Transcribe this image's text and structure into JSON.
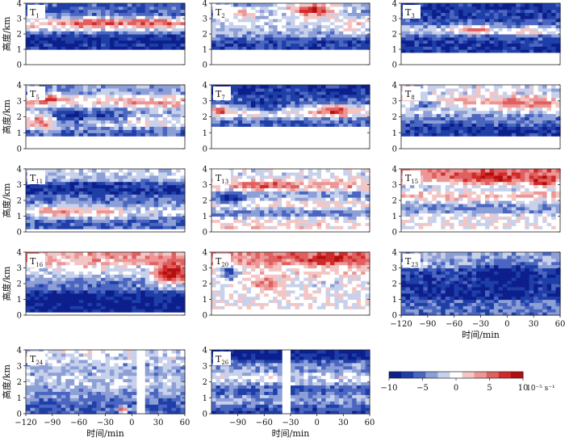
{
  "chart_data": [
    {
      "type": "heatmap",
      "panel": "T1",
      "x": [
        -120,
        60
      ],
      "ylim": [
        0,
        4
      ],
      "floor_km": 1.0,
      "ylabel": "高度/km",
      "yticks": [
        0,
        1,
        2,
        3,
        4
      ],
      "bands": [
        {
          "h": 3.15,
          "v": -6
        },
        {
          "h": 2.75,
          "v": 5
        },
        {
          "h": 2.3,
          "v": -2
        },
        {
          "h": 1.8,
          "v": -9
        },
        {
          "h": 1.3,
          "v": -8
        }
      ],
      "blobs": [
        {
          "x": -40,
          "h": 2.75,
          "v": 7,
          "wx": 30,
          "wh": 0.25
        },
        {
          "x": 20,
          "h": 2.75,
          "v": 6,
          "wx": 30,
          "wh": 0.25
        }
      ]
    },
    {
      "type": "heatmap",
      "panel": "T2",
      "x": [
        -120,
        60
      ],
      "ylim": [
        0,
        4
      ],
      "floor_km": 1.0,
      "yticks": [
        0,
        1,
        2,
        3,
        4
      ],
      "bands": [
        {
          "h": 3.5,
          "v": -3
        },
        {
          "h": 2.7,
          "v": -1
        },
        {
          "h": 2.1,
          "v": -3
        },
        {
          "h": 1.4,
          "v": -7
        }
      ],
      "blobs": [
        {
          "x": -5,
          "h": 3.6,
          "v": 8,
          "wx": 28,
          "wh": 0.45
        },
        {
          "x": -85,
          "h": 3.4,
          "v": 4,
          "wx": 18,
          "wh": 0.3
        },
        {
          "x": 40,
          "h": 2.6,
          "v": 2,
          "wx": 15,
          "wh": 0.5
        }
      ]
    },
    {
      "type": "heatmap",
      "panel": "T3",
      "x": [
        -120,
        60
      ],
      "ylim": [
        0,
        4
      ],
      "floor_km": 0.8,
      "ylabel": "",
      "yticks": [
        0,
        1,
        2,
        3,
        4
      ],
      "bands": [
        {
          "h": 3.4,
          "v": -8
        },
        {
          "h": 2.8,
          "v": -6
        },
        {
          "h": 2.25,
          "v": -1
        },
        {
          "h": 1.7,
          "v": -7
        },
        {
          "h": 1.2,
          "v": -8
        }
      ],
      "blobs": [
        {
          "x": -40,
          "h": 2.3,
          "v": 6,
          "wx": 20,
          "wh": 0.2
        },
        {
          "x": 20,
          "h": 2.2,
          "v": 3,
          "wx": 25,
          "wh": 0.2
        }
      ]
    },
    {
      "type": "heatmap",
      "panel": "T5",
      "x": [
        -120,
        60
      ],
      "ylim": [
        0,
        4
      ],
      "floor_km": 0.9,
      "ylabel": "高度/km",
      "yticks": [
        0,
        1,
        2,
        3,
        4
      ],
      "bands": [
        {
          "h": 3.6,
          "v": -4
        },
        {
          "h": 3.0,
          "v": 3
        },
        {
          "h": 2.3,
          "v": -3
        },
        {
          "h": 1.6,
          "v": 1
        },
        {
          "h": 1.1,
          "v": -6
        }
      ],
      "blobs": [
        {
          "x": -90,
          "h": 3.1,
          "v": 6,
          "wx": 15,
          "wh": 0.3
        },
        {
          "x": -100,
          "h": 1.7,
          "v": 6,
          "wx": 15,
          "wh": 0.4
        },
        {
          "x": -70,
          "h": 2.1,
          "v": -9,
          "wx": 20,
          "wh": 0.6
        },
        {
          "x": -30,
          "h": 2.1,
          "v": -7,
          "wx": 25,
          "wh": 0.5
        }
      ]
    },
    {
      "type": "heatmap",
      "panel": "T7",
      "x": [
        -120,
        60
      ],
      "ylim": [
        0,
        4
      ],
      "floor_km": 1.5,
      "yticks": [
        0,
        1,
        2,
        3,
        4
      ],
      "bands": [
        {
          "h": 3.6,
          "v": -8
        },
        {
          "h": 3.0,
          "v": -5
        },
        {
          "h": 2.3,
          "v": 1
        },
        {
          "h": 1.7,
          "v": -6
        }
      ],
      "blobs": [
        {
          "x": -110,
          "h": 2.4,
          "v": 8,
          "wx": 8,
          "wh": 0.25
        },
        {
          "x": 20,
          "h": 2.4,
          "v": 8,
          "wx": 20,
          "wh": 0.3
        },
        {
          "x": -60,
          "h": 2.8,
          "v": -9,
          "wx": 25,
          "wh": 0.4
        }
      ]
    },
    {
      "type": "heatmap",
      "panel": "T8",
      "x": [
        -120,
        60
      ],
      "ylim": [
        0,
        4
      ],
      "floor_km": 0.9,
      "ylabel": "",
      "yticks": [
        0,
        1,
        2,
        3,
        4
      ],
      "bands": [
        {
          "h": 3.5,
          "v": -1
        },
        {
          "h": 2.9,
          "v": 3
        },
        {
          "h": 2.4,
          "v": -2
        },
        {
          "h": 1.8,
          "v": -5
        },
        {
          "h": 1.2,
          "v": -8
        }
      ],
      "blobs": [
        {
          "x": 20,
          "h": 2.9,
          "v": 5,
          "wx": 30,
          "wh": 0.3
        },
        {
          "x": -90,
          "h": 2.8,
          "v": -5,
          "wx": 20,
          "wh": 0.3
        }
      ]
    },
    {
      "type": "heatmap",
      "panel": "T11",
      "x": [
        -120,
        60
      ],
      "ylim": [
        0,
        4
      ],
      "floor_km": 0.3,
      "ylabel": "高度/km",
      "yticks": [
        0,
        1,
        2,
        3,
        4
      ],
      "bands": [
        {
          "h": 3.6,
          "v": -2
        },
        {
          "h": 2.8,
          "v": -8
        },
        {
          "h": 2.0,
          "v": -5
        },
        {
          "h": 1.3,
          "v": -1
        },
        {
          "h": 0.6,
          "v": -6
        }
      ],
      "blobs": [
        {
          "x": -80,
          "h": 1.3,
          "v": 5,
          "wx": 25,
          "wh": 0.3
        },
        {
          "x": -30,
          "h": 1.2,
          "v": 3,
          "wx": 20,
          "wh": 0.3
        }
      ]
    },
    {
      "type": "heatmap",
      "panel": "T13",
      "x": [
        -120,
        60
      ],
      "ylim": [
        0,
        4
      ],
      "floor_km": 0.2,
      "ylabel": "",
      "yticks": [
        0,
        1,
        2,
        3,
        4
      ],
      "bands": [
        {
          "h": 3.5,
          "v": -1
        },
        {
          "h": 3.0,
          "v": 3
        },
        {
          "h": 2.3,
          "v": -4
        },
        {
          "h": 1.8,
          "v": 2
        },
        {
          "h": 1.3,
          "v": -5
        },
        {
          "h": 0.6,
          "v": 1
        }
      ],
      "blobs": [
        {
          "x": -60,
          "h": 3.0,
          "v": 7,
          "wx": 30,
          "wh": 0.2
        },
        {
          "x": -100,
          "h": 2.2,
          "v": -9,
          "wx": 15,
          "wh": 0.4
        }
      ]
    },
    {
      "type": "heatmap",
      "panel": "T15",
      "x": [
        -120,
        60
      ],
      "ylim": [
        0,
        4
      ],
      "floor_km": 0.2,
      "ylabel": "",
      "yticks": [
        0,
        1,
        2,
        3,
        4
      ],
      "bands": [
        {
          "h": 3.5,
          "v": 4
        },
        {
          "h": 2.9,
          "v": -2
        },
        {
          "h": 2.3,
          "v": 2
        },
        {
          "h": 1.6,
          "v": -4
        },
        {
          "h": 0.8,
          "v": 0
        }
      ],
      "blobs": [
        {
          "x": -20,
          "h": 3.5,
          "v": 8,
          "wx": 40,
          "wh": 0.4
        },
        {
          "x": 40,
          "h": 3.3,
          "v": 8,
          "wx": 15,
          "wh": 0.4
        }
      ]
    },
    {
      "type": "heatmap",
      "panel": "T16",
      "x": [
        -120,
        60
      ],
      "ylim": [
        0,
        4
      ],
      "floor_km": 0.3,
      "ylabel": "高度/km",
      "yticks": [
        0,
        1,
        2,
        3,
        4
      ],
      "bands": [
        {
          "h": 3.6,
          "v": 3
        },
        {
          "h": 2.8,
          "v": -2
        },
        {
          "h": 2.0,
          "v": -5
        },
        {
          "h": 1.0,
          "v": -9
        }
      ],
      "blobs": [
        {
          "x": 45,
          "h": 2.7,
          "v": 10,
          "wx": 20,
          "wh": 0.7
        },
        {
          "x": -60,
          "h": 3.2,
          "v": 2,
          "wx": 30,
          "wh": 0.5
        }
      ]
    },
    {
      "type": "heatmap",
      "panel": "T20",
      "x": [
        -120,
        60
      ],
      "ylim": [
        0,
        4
      ],
      "floor_km": 0.4,
      "ylabel": "",
      "yticks": [
        0,
        1,
        2,
        3,
        4
      ],
      "bands": [
        {
          "h": 3.5,
          "v": 4
        },
        {
          "h": 2.8,
          "v": 1
        },
        {
          "h": 2.0,
          "v": -1
        },
        {
          "h": 1.2,
          "v": 0
        }
      ],
      "blobs": [
        {
          "x": 20,
          "h": 3.6,
          "v": 8,
          "wx": 40,
          "wh": 0.3
        },
        {
          "x": -100,
          "h": 2.8,
          "v": -8,
          "wx": 12,
          "wh": 0.5
        },
        {
          "x": -60,
          "h": 2.0,
          "v": 5,
          "wx": 20,
          "wh": 0.4
        }
      ]
    },
    {
      "type": "heatmap",
      "panel": "T23",
      "x": [
        -120,
        60
      ],
      "ylim": [
        0,
        4
      ],
      "floor_km": 0.0,
      "ylabel": "",
      "yticks": [
        0,
        1,
        2,
        3,
        4
      ],
      "xlabel": "时间/min",
      "xticks": [
        -120,
        -90,
        -60,
        -30,
        0,
        30,
        60
      ],
      "bands": [
        {
          "h": 3.5,
          "v": -3
        },
        {
          "h": 2.5,
          "v": -7
        },
        {
          "h": 1.5,
          "v": -8
        },
        {
          "h": 0.5,
          "v": -5
        }
      ],
      "blobs": [
        {
          "x": 0,
          "h": 2.5,
          "v": -10,
          "wx": 40,
          "wh": 0.8
        }
      ]
    },
    {
      "type": "heatmap",
      "panel": "T24",
      "x": [
        -120,
        60
      ],
      "ylim": [
        0,
        4
      ],
      "floor_km": 0.0,
      "ylabel": "高度/km",
      "yticks": [
        0,
        1,
        2,
        3,
        4
      ],
      "xlabel": "时间/min",
      "xticks": [
        -120,
        -90,
        -60,
        -30,
        0,
        30,
        60
      ],
      "gap": [
        7,
        15
      ],
      "bands": [
        {
          "h": 3.6,
          "v": -1
        },
        {
          "h": 2.8,
          "v": -3
        },
        {
          "h": 2.0,
          "v": -2
        },
        {
          "h": 1.2,
          "v": -4
        },
        {
          "h": 0.5,
          "v": -6
        }
      ],
      "blobs": [
        {
          "x": -10,
          "h": 0.3,
          "v": 8,
          "wx": 6,
          "wh": 0.2
        }
      ]
    },
    {
      "type": "heatmap",
      "panel": "T26",
      "x": [
        -120,
        60
      ],
      "ylim": [
        0,
        4
      ],
      "floor_km": 0.0,
      "ylabel": "",
      "yticks": [
        0,
        1,
        2,
        3,
        4
      ],
      "xlabel": "时间/min",
      "xticks": [
        -90,
        -60,
        -30,
        0,
        30,
        60
      ],
      "gap": [
        -40,
        -30
      ],
      "bands": [
        {
          "h": 3.7,
          "v": -9
        },
        {
          "h": 3.0,
          "v": -4
        },
        {
          "h": 2.2,
          "v": -1
        },
        {
          "h": 1.5,
          "v": -6
        },
        {
          "h": 0.8,
          "v": -3
        },
        {
          "h": 0.3,
          "v": -7
        }
      ],
      "blobs": []
    },
    {
      "type": "colorbar",
      "range": [
        -10,
        10
      ],
      "ticks": [
        -10,
        -5,
        0,
        5,
        10
      ],
      "unit": "10⁻⁵ s⁻¹",
      "colors": [
        "#0d1f8c",
        "#1f3fa8",
        "#4a66c0",
        "#8c9fd6",
        "#c8d1ec",
        "#ffffff",
        "#f3c6c6",
        "#ec9696",
        "#e06060",
        "#d02a2a",
        "#b40f0f"
      ]
    }
  ]
}
